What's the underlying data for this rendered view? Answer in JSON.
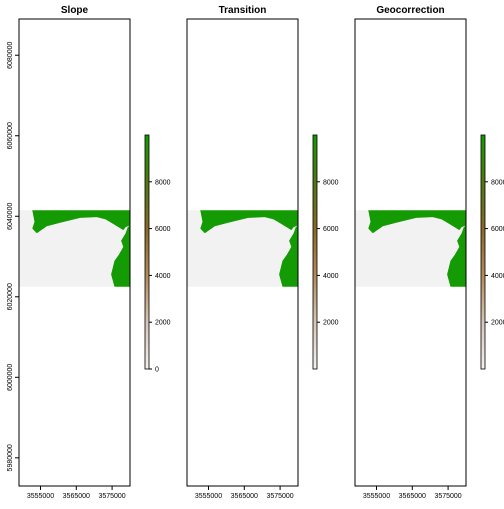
{
  "colors": {
    "background": "#ffffff",
    "frame": "#000000",
    "nodata": "#f2f2f2",
    "high": "#149a02",
    "colorbar_stops": [
      "#f2f2f2",
      "#d9c6b4",
      "#b58b5a",
      "#8a6a24",
      "#4f7a10",
      "#149a02"
    ]
  },
  "chart_data": [
    {
      "type": "heatmap",
      "title": "Slope",
      "xlabel": "",
      "ylabel": "",
      "x_ticks": [
        3555000,
        3565000,
        3575000
      ],
      "x_tick_labels": [
        "3555000",
        "3565000",
        "3575000"
      ],
      "y_ticks": [
        5980000,
        6000000,
        6020000,
        6040000,
        6060000,
        6080000
      ],
      "y_tick_labels": [
        "5980000",
        "6000000",
        "6020000",
        "6040000",
        "6060000",
        "6080000"
      ],
      "show_y_ticks": true,
      "xlim": [
        3549000,
        3580000
      ],
      "ylim": [
        5973000,
        6089000
      ],
      "extent_x": [
        3549000,
        3580000
      ],
      "extent_y": [
        6022500,
        6041500
      ],
      "colorbar": {
        "ticks": [
          0,
          2000,
          4000,
          6000,
          8000
        ],
        "tick_labels": [
          "0",
          "2000",
          "4000",
          "6000",
          "8000"
        ],
        "range": [
          0,
          10000
        ]
      },
      "grid": false,
      "legend": "right"
    },
    {
      "type": "heatmap",
      "title": "Transition",
      "xlabel": "",
      "ylabel": "",
      "x_ticks": [
        3555000,
        3565000,
        3575000
      ],
      "x_tick_labels": [
        "3555000",
        "3565000",
        "3575000"
      ],
      "y_ticks": [],
      "y_tick_labels": [],
      "show_y_ticks": false,
      "xlim": [
        3549000,
        3580000
      ],
      "ylim": [
        5973000,
        6089000
      ],
      "extent_x": [
        3549000,
        3580000
      ],
      "extent_y": [
        6022500,
        6041500
      ],
      "colorbar": {
        "ticks": [
          2000,
          4000,
          6000,
          8000
        ],
        "tick_labels": [
          "2000",
          "4000",
          "6000",
          "8000"
        ],
        "range": [
          0,
          10000
        ]
      },
      "grid": false,
      "legend": "right"
    },
    {
      "type": "heatmap",
      "title": "Geocorrection",
      "xlabel": "",
      "ylabel": "",
      "x_ticks": [
        3555000,
        3565000,
        3575000
      ],
      "x_tick_labels": [
        "3555000",
        "3565000",
        "3575000"
      ],
      "y_ticks": [],
      "y_tick_labels": [],
      "show_y_ticks": false,
      "xlim": [
        3549000,
        3580000
      ],
      "ylim": [
        5973000,
        6089000
      ],
      "extent_x": [
        3549000,
        3580000
      ],
      "extent_y": [
        6022500,
        6041500
      ],
      "colorbar": {
        "ticks": [
          2000,
          4000,
          6000,
          8000
        ],
        "tick_labels": [
          "2000",
          "4000",
          "6000",
          "8000"
        ],
        "range": [
          0,
          10000
        ]
      },
      "grid": false,
      "legend": "right"
    }
  ]
}
